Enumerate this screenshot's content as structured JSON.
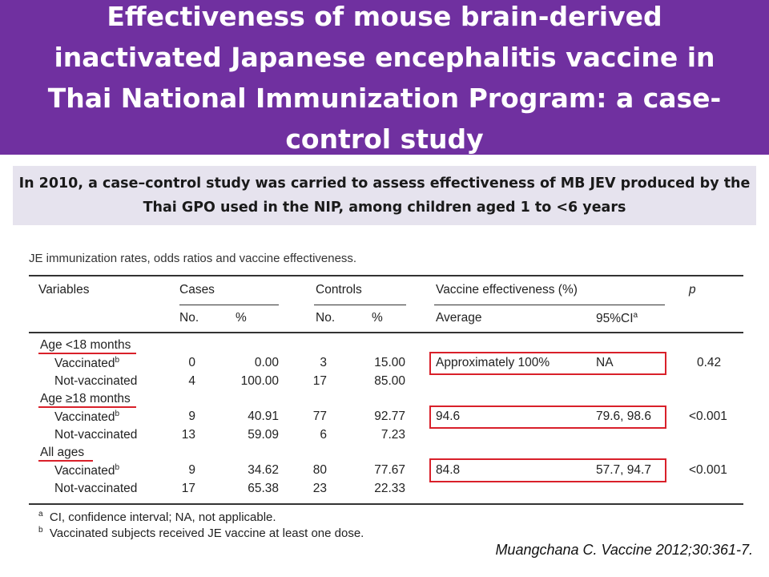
{
  "header": {
    "title": "Effectiveness of mouse brain-derived inactivated Japanese encephalitis vaccine in Thai National Immunization Program: a case-control study"
  },
  "subtitle": {
    "text": "In 2010, a case–control study was carried to assess effectiveness of MB JEV produced by the Thai GPO used in the NIP, among children aged 1 to <6 years"
  },
  "table": {
    "caption": "JE immunization rates, odds ratios and vaccine effectiveness.",
    "headers": {
      "variables": "Variables",
      "cases": "Cases",
      "controls": "Controls",
      "ve": "Vaccine effectiveness (%)",
      "p": "p",
      "no": "No.",
      "pct": "%",
      "average": "Average",
      "ci": "95%CI"
    },
    "groups": [
      {
        "label": "Age <18 months",
        "rows": [
          {
            "label": "Vaccinated",
            "cases_no": "0",
            "cases_pct": "0.00",
            "controls_no": "3",
            "controls_pct": "15.00",
            "avg": "Approximately 100%",
            "ci": "NA",
            "p": "0.42"
          },
          {
            "label": "Not-vaccinated",
            "cases_no": "4",
            "cases_pct": "100.00",
            "controls_no": "17",
            "controls_pct": "85.00"
          }
        ]
      },
      {
        "label": "Age ≥18 months",
        "rows": [
          {
            "label": "Vaccinated",
            "cases_no": "9",
            "cases_pct": "40.91",
            "controls_no": "77",
            "controls_pct": "92.77",
            "avg": "94.6",
            "ci": "79.6, 98.6",
            "p": "<0.001"
          },
          {
            "label": "Not-vaccinated",
            "cases_no": "13",
            "cases_pct": "59.09",
            "controls_no": "6",
            "controls_pct": "7.23"
          }
        ]
      },
      {
        "label": "All ages",
        "rows": [
          {
            "label": "Vaccinated",
            "cases_no": "9",
            "cases_pct": "34.62",
            "controls_no": "80",
            "controls_pct": "77.67",
            "avg": "84.8",
            "ci": "57.7, 94.7",
            "p": "<0.001"
          },
          {
            "label": "Not-vaccinated",
            "cases_no": "17",
            "cases_pct": "65.38",
            "controls_no": "23",
            "controls_pct": "22.33"
          }
        ]
      }
    ],
    "footnotes": {
      "a_mark": "a",
      "a": "CI, confidence interval; NA, not applicable.",
      "b_mark": "b",
      "b": "Vaccinated subjects received JE vaccine at least one dose."
    },
    "sup_a": "a",
    "sup_b": "b"
  },
  "citation": "Muangchana C. Vaccine 2012;30:361-7.",
  "colors": {
    "header_bg": "#7030a0",
    "subtitle_bg": "#e6e3ee",
    "highlight": "#d9202a"
  }
}
